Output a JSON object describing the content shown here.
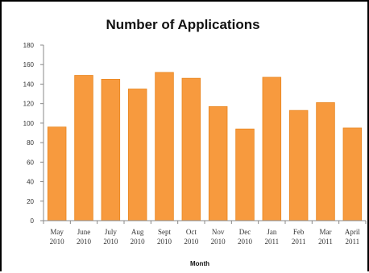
{
  "chart_data": {
    "type": "bar",
    "title": "Number of Applications",
    "xlabel": "Month",
    "ylabel": "",
    "ylim": [
      0,
      180
    ],
    "yticks": [
      "0",
      "20",
      "40",
      "60",
      "80",
      "100",
      "120",
      "140",
      "160",
      "180"
    ],
    "categories": [
      "May 2010",
      "June 2010",
      "July 2010",
      "Aug 2010",
      "Sept 2010",
      "Oct 2010",
      "Nov 2010",
      "Dec 2010",
      "Jan 2011",
      "Feb 2011",
      "Mar 2011",
      "April 2011"
    ],
    "category_lines": [
      [
        "May",
        "2010"
      ],
      [
        "June",
        "2010"
      ],
      [
        "July",
        "2010"
      ],
      [
        "Aug",
        "2010"
      ],
      [
        "Sept",
        "2010"
      ],
      [
        "Oct",
        "2010"
      ],
      [
        "Nov",
        "2010"
      ],
      [
        "Dec",
        "2010"
      ],
      [
        "Jan",
        "2011"
      ],
      [
        "Feb",
        "2011"
      ],
      [
        "Mar",
        "2011"
      ],
      [
        "April",
        "2011"
      ]
    ],
    "values": [
      96,
      149,
      145,
      135,
      152,
      146,
      117,
      94,
      147,
      113,
      121,
      95
    ],
    "grid": false,
    "legend": "none",
    "colors": {
      "bar": "#F79A3E",
      "bar_edge": "#E8861F",
      "axis": "#888888"
    }
  }
}
